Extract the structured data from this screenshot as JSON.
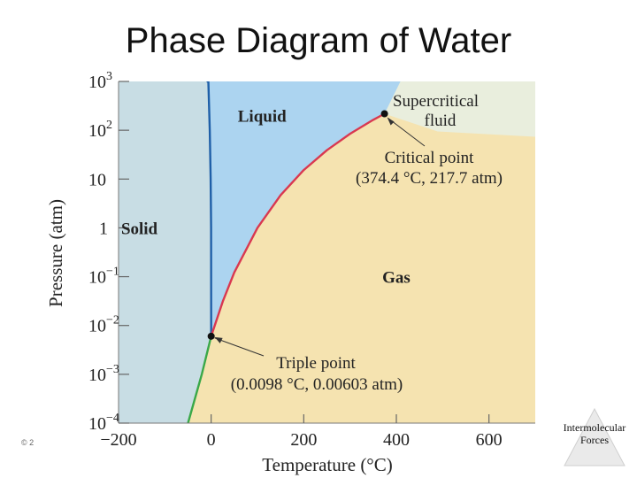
{
  "page_title": "Phase Diagram of Water",
  "footer_label": "Intermolecular Forces",
  "copyright": "© 2",
  "chart_data": {
    "type": "area",
    "title": "Phase Diagram of Water",
    "xlabel": "Temperature (°C)",
    "ylabel": "Pressure (atm)",
    "xlim": [
      -200,
      700
    ],
    "ylim": [
      0.0001,
      1000
    ],
    "yscale": "log",
    "x_ticks": [
      {
        "value": -200,
        "label": "−200"
      },
      {
        "value": 0,
        "label": "0"
      },
      {
        "value": 200,
        "label": "200"
      },
      {
        "value": 400,
        "label": "400"
      },
      {
        "value": 600,
        "label": "600"
      }
    ],
    "y_ticks": [
      {
        "value": 1000,
        "base": "10",
        "exp": "3"
      },
      {
        "value": 100,
        "base": "10",
        "exp": "2"
      },
      {
        "value": 10,
        "base": "10",
        "exp": ""
      },
      {
        "value": 1,
        "base": "1",
        "exp": ""
      },
      {
        "value": 0.1,
        "base": "10",
        "exp": "−1"
      },
      {
        "value": 0.01,
        "base": "10",
        "exp": "−2"
      },
      {
        "value": 0.001,
        "base": "10",
        "exp": "−3"
      },
      {
        "value": 0.0001,
        "base": "10",
        "exp": "−4"
      }
    ],
    "regions": [
      {
        "label": "Solid",
        "color": "#c8dde4",
        "label_at": [
          -155,
          1
        ]
      },
      {
        "label": "Liquid",
        "color": "#acd4f0",
        "label_at": [
          110,
          200
        ]
      },
      {
        "label": "Gas",
        "color": "#f5e3b0",
        "label_at": [
          400,
          0.1
        ]
      },
      {
        "label": "Supercritical",
        "label2": "fluid",
        "color": "#e9eedd",
        "label_at": [
          485,
          310
        ]
      }
    ],
    "curves": [
      {
        "name": "melting",
        "color": "#1f5fa8",
        "points": [
          [
            0.0098,
            0.00603
          ],
          [
            -0.2,
            1
          ],
          [
            -1,
            10
          ],
          [
            -3,
            100
          ],
          [
            -6,
            1000
          ]
        ]
      },
      {
        "name": "vaporization",
        "color": "#d93850",
        "points": [
          [
            0.0098,
            0.00603
          ],
          [
            25,
            0.031
          ],
          [
            50,
            0.122
          ],
          [
            100,
            1
          ],
          [
            150,
            4.7
          ],
          [
            200,
            15.3
          ],
          [
            250,
            39
          ],
          [
            300,
            84.8
          ],
          [
            350,
            163
          ],
          [
            374.4,
            217.7
          ]
        ]
      },
      {
        "name": "sublimation",
        "color": "#3aa848",
        "points": [
          [
            0.0098,
            0.00603
          ],
          [
            -20,
            0.00102
          ],
          [
            -50,
            0.0001
          ]
        ]
      }
    ],
    "points": [
      {
        "label": "Critical point",
        "detail": "(374.4 °C, 217.7 atm)",
        "x": 374.4,
        "y": 217.7
      },
      {
        "label": "Triple point",
        "detail": "(0.0098 °C, 0.00603 atm)",
        "x": 0.0098,
        "y": 0.00603
      }
    ]
  }
}
